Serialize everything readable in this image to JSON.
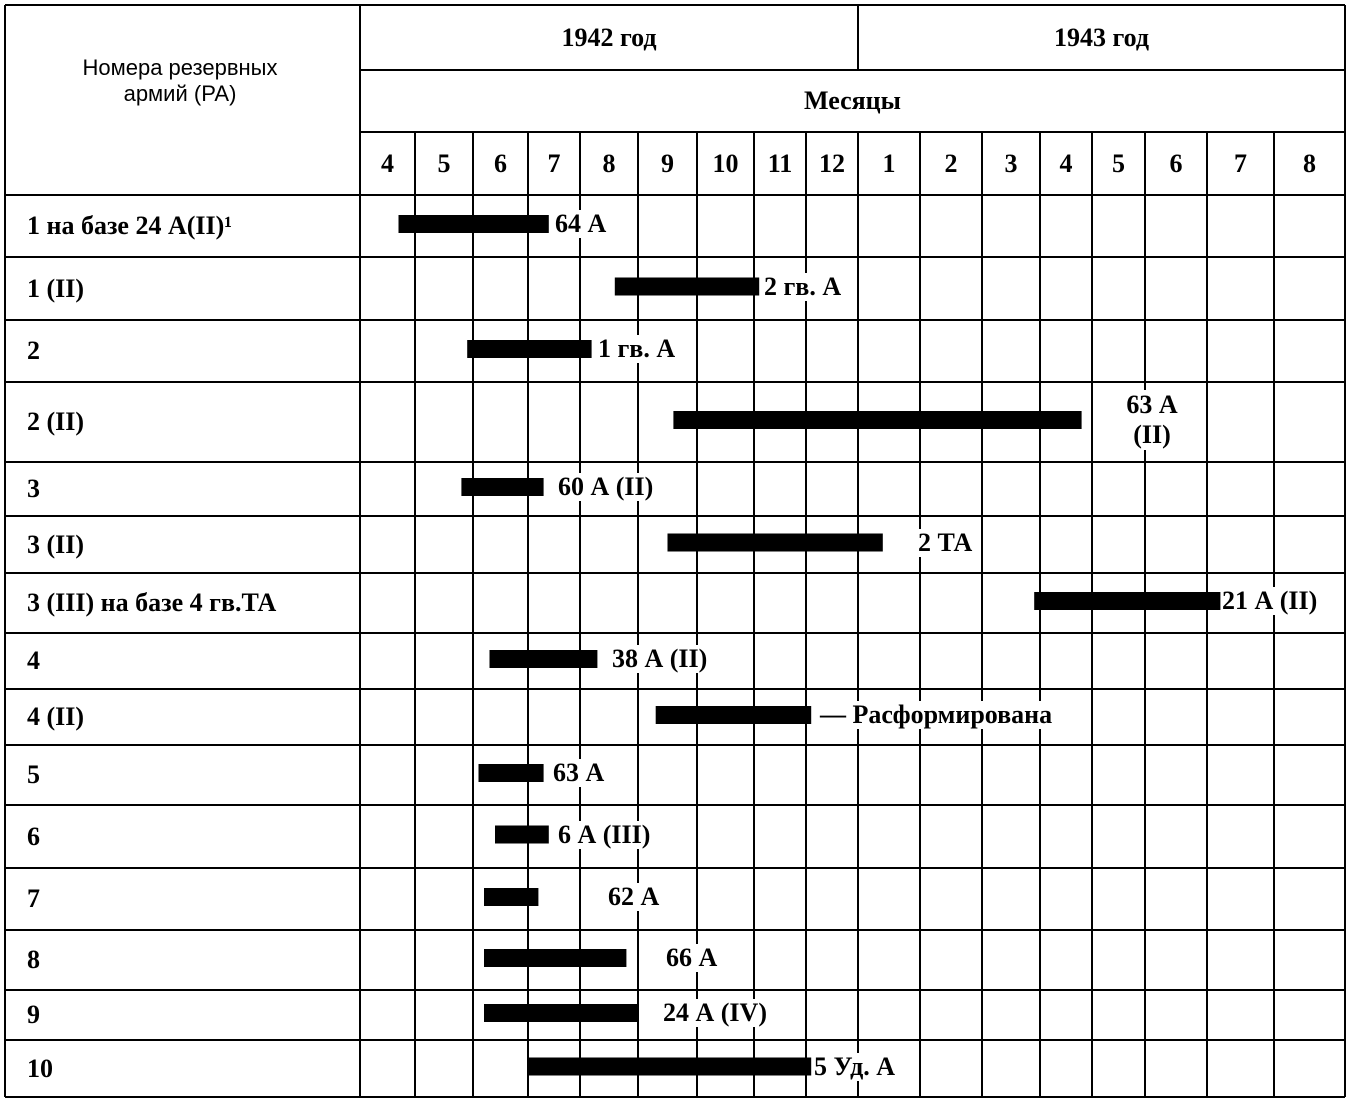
{
  "header": {
    "row_label": "Номера резервных армий (РА)",
    "years": [
      "1942 год",
      "1943 год"
    ],
    "months_label": "Месяцы",
    "months": [
      "4",
      "5",
      "6",
      "7",
      "8",
      "9",
      "10",
      "11",
      "12",
      "1",
      "2",
      "3",
      "4",
      "5",
      "6",
      "7",
      "8"
    ]
  },
  "rows": [
    {
      "label": "1 на базе 24 А(II)¹",
      "start": 0.7,
      "end": 3.4,
      "result": "64 А"
    },
    {
      "label": "1 (II)",
      "start": 4.6,
      "end": 7.1,
      "result": "2 гв. А"
    },
    {
      "label": "2",
      "start": 1.9,
      "end": 4.2,
      "result": "1 гв. А"
    },
    {
      "label": "2 (II)",
      "start": 5.6,
      "end": 12.8,
      "result": "63 А (II)"
    },
    {
      "label": "3",
      "start": 1.8,
      "end": 3.3,
      "result": "60 А (II)"
    },
    {
      "label": "3 (II)",
      "start": 5.5,
      "end": 9.4,
      "result": "2 ТА"
    },
    {
      "label": "3 (III) на базе 4 гв.ТА",
      "start": 11.9,
      "end": 15.2,
      "result": "21 А (II)"
    },
    {
      "label": "4",
      "start": 2.3,
      "end": 4.3,
      "result": "38 А (II)"
    },
    {
      "label": "4 (II)",
      "start": 5.3,
      "end": 8.1,
      "result": "— Расформирована"
    },
    {
      "label": "5",
      "start": 2.1,
      "end": 3.3,
      "result": "63 А"
    },
    {
      "label": "6",
      "start": 2.4,
      "end": 3.4,
      "result": "6 А (III)"
    },
    {
      "label": "7",
      "start": 2.2,
      "end": 3.2,
      "result": "62 А"
    },
    {
      "label": "8",
      "start": 2.2,
      "end": 4.8,
      "result": "66 А"
    },
    {
      "label": "9",
      "start": 2.2,
      "end": 5.0,
      "result": "24 А (IV)"
    },
    {
      "label": "10",
      "start": 3.0,
      "end": 8.1,
      "result": "5 Уд. А"
    }
  ]
}
